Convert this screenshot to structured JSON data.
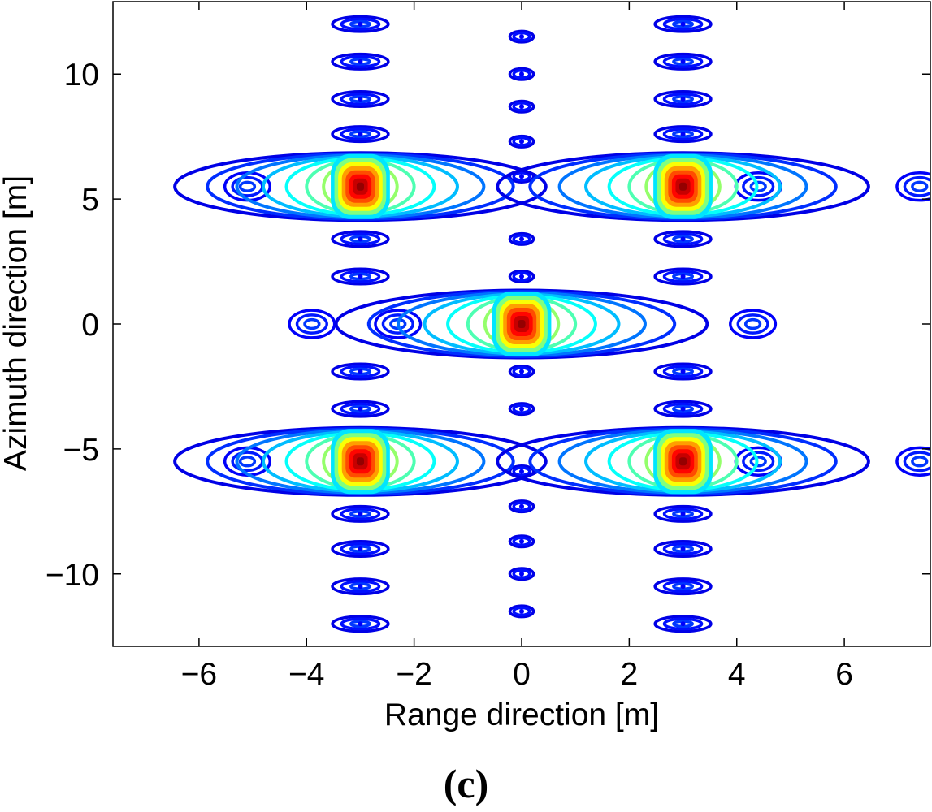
{
  "panel_label": "(c)",
  "chart_data": {
    "type": "contour",
    "title": "",
    "xlabel": "Range direction [m]",
    "ylabel": "Azimuth direction [m]",
    "xlim": [
      -7.6,
      7.6
    ],
    "ylim": [
      -12.9,
      12.9
    ],
    "xticks": [
      -6,
      -4,
      -2,
      0,
      2,
      4,
      6
    ],
    "xtick_labels": [
      "−6",
      "−4",
      "−2",
      "0",
      "2",
      "4",
      "6"
    ],
    "yticks": [
      -10,
      -5,
      0,
      5,
      10
    ],
    "ytick_labels": [
      "−10",
      "−5",
      "0",
      "5",
      "10"
    ],
    "grid": false,
    "colormap": "jet",
    "contour_levels": 10,
    "point_targets": [
      {
        "x": -3,
        "y": 5.5
      },
      {
        "x": 3,
        "y": 5.5
      },
      {
        "x": 0,
        "y": 0
      },
      {
        "x": -3,
        "y": -5.5
      },
      {
        "x": 3,
        "y": -5.5
      }
    ],
    "azimuth_sidelobes": [
      {
        "x": -3,
        "y": 12
      },
      {
        "x": -3,
        "y": 10.5
      },
      {
        "x": -3,
        "y": 9
      },
      {
        "x": -3,
        "y": 7.6
      },
      {
        "x": -3,
        "y": 3.4
      },
      {
        "x": -3,
        "y": 1.9
      },
      {
        "x": -3,
        "y": -1.9
      },
      {
        "x": -3,
        "y": -3.4
      },
      {
        "x": -3,
        "y": -7.6
      },
      {
        "x": -3,
        "y": -9
      },
      {
        "x": -3,
        "y": -10.5
      },
      {
        "x": -3,
        "y": -12
      },
      {
        "x": 3,
        "y": 12
      },
      {
        "x": 3,
        "y": 10.5
      },
      {
        "x": 3,
        "y": 9
      },
      {
        "x": 3,
        "y": 7.6
      },
      {
        "x": 3,
        "y": 3.4
      },
      {
        "x": 3,
        "y": 1.9
      },
      {
        "x": 3,
        "y": -1.9
      },
      {
        "x": 3,
        "y": -3.4
      },
      {
        "x": 3,
        "y": -7.6
      },
      {
        "x": 3,
        "y": -9
      },
      {
        "x": 3,
        "y": -10.5
      },
      {
        "x": 3,
        "y": -12
      },
      {
        "x": 0,
        "y": 3.4
      },
      {
        "x": 0,
        "y": 1.9
      },
      {
        "x": 0,
        "y": -1.9
      },
      {
        "x": 0,
        "y": -3.4
      },
      {
        "x": 0,
        "y": 11.5
      },
      {
        "x": 0,
        "y": 10
      },
      {
        "x": 0,
        "y": 8.7
      },
      {
        "x": 0,
        "y": 7.3
      },
      {
        "x": 0,
        "y": 5.9
      },
      {
        "x": 0,
        "y": -5.9
      },
      {
        "x": 0,
        "y": -7.3
      },
      {
        "x": 0,
        "y": -8.7
      },
      {
        "x": 0,
        "y": -10
      },
      {
        "x": 0,
        "y": -11.5
      }
    ],
    "range_sidelobes": [
      {
        "x": -5.1,
        "y": 5.5
      },
      {
        "x": 4.4,
        "y": 5.5
      },
      {
        "x": 7.4,
        "y": 5.5
      },
      {
        "x": -5.1,
        "y": -5.5
      },
      {
        "x": 4.4,
        "y": -5.5
      },
      {
        "x": 7.4,
        "y": -5.5
      },
      {
        "x": -2.3,
        "y": 0
      },
      {
        "x": -3.9,
        "y": 0
      },
      {
        "x": 4.3,
        "y": 0
      }
    ]
  }
}
